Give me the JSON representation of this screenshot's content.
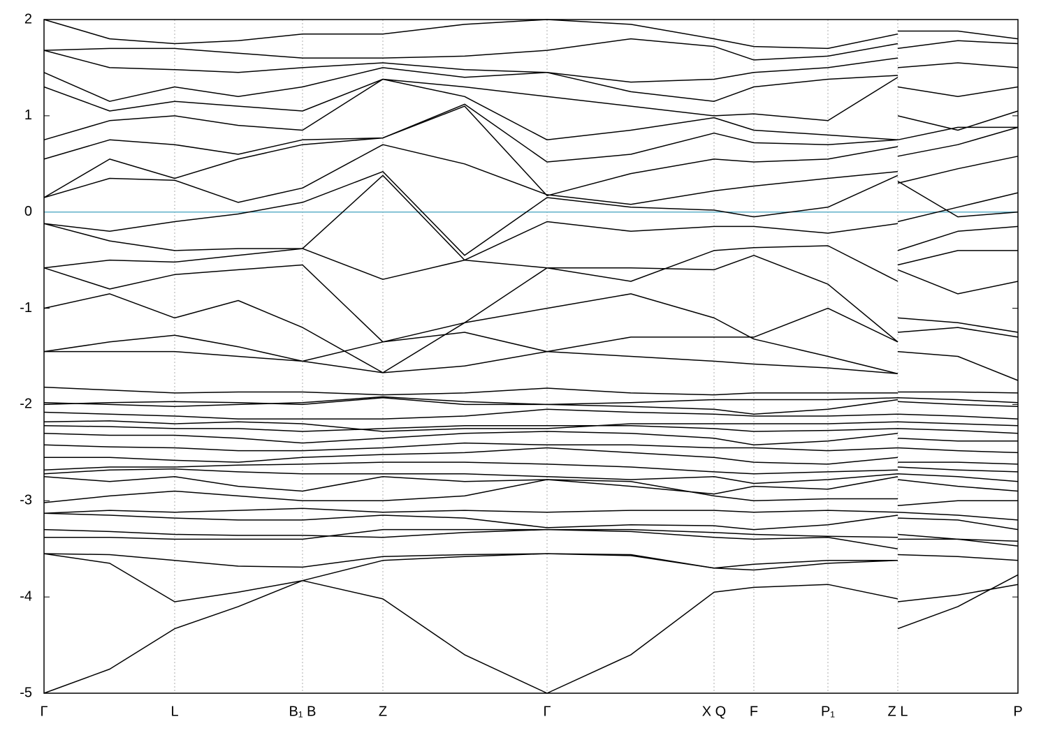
{
  "chart_data": {
    "type": "line",
    "color": "#000000",
    "xlim": [
      0,
      1394
    ],
    "ylim": [
      -5,
      2
    ],
    "xticks": [
      {
        "value": 0,
        "label": "Γ"
      },
      {
        "value": 187,
        "label": "L"
      },
      {
        "value": 370,
        "label": "B₁ B"
      },
      {
        "value": 485,
        "label": "Z"
      },
      {
        "value": 720,
        "label": "Γ"
      },
      {
        "value": 959,
        "label": "X Q"
      },
      {
        "value": 1016,
        "label": "F"
      },
      {
        "value": 1122,
        "label": "P₁"
      },
      {
        "value": 1222,
        "label": "Z L"
      },
      {
        "value": 1394,
        "label": "P"
      }
    ],
    "yticks": [
      -5,
      -4,
      -3,
      -2,
      -1,
      0,
      1,
      2
    ],
    "x_grid": true,
    "reference_line": {
      "value": 0,
      "color": "#5fb0c8"
    },
    "x": [
      0,
      94,
      187,
      278,
      370,
      485,
      602,
      720,
      840,
      959,
      1016,
      1122,
      1222,
      1222,
      1222,
      1308,
      1394
    ],
    "series": [
      {
        "values": [
          -5,
          -4.75,
          -4.33,
          -4.1,
          -3.83,
          -3.62,
          -3.58,
          -3.55,
          -3.57,
          -3.7,
          -3.66,
          -3.62,
          -3.62,
          null,
          -4.33,
          -4.1,
          -3.77
        ]
      },
      {
        "values": [
          -3.55,
          -3.65,
          -4.05,
          -3.95,
          -3.83,
          -4.02,
          -4.6,
          -5,
          -4.6,
          -3.95,
          -3.9,
          -3.87,
          -4.02,
          null,
          -4.05,
          -3.98,
          -3.87
        ]
      },
      {
        "values": [
          -3.55,
          -3.56,
          -3.62,
          -3.68,
          -3.69,
          -3.58,
          -3.56,
          -3.55,
          -3.56,
          -3.7,
          -3.72,
          -3.65,
          -3.62,
          null,
          -3.56,
          -3.58,
          -3.62
        ]
      },
      {
        "values": [
          -3.38,
          -3.38,
          -3.4,
          -3.4,
          -3.4,
          -3.3,
          -3.3,
          -3.3,
          -3.3,
          -3.33,
          -3.35,
          -3.37,
          -3.38,
          null,
          -3.4,
          -3.4,
          -3.42
        ]
      },
      {
        "values": [
          -3.3,
          -3.32,
          -3.35,
          -3.36,
          -3.36,
          -3.38,
          -3.33,
          -3.3,
          -3.32,
          -3.38,
          -3.4,
          -3.38,
          -3.5,
          null,
          -3.35,
          -3.4,
          -3.47
        ]
      },
      {
        "values": [
          -3.13,
          -3.15,
          -3.18,
          -3.2,
          -3.2,
          -3.15,
          -3.18,
          -3.28,
          -3.25,
          -3.26,
          -3.3,
          -3.25,
          -3.15,
          null,
          -3.18,
          -3.2,
          -3.3
        ]
      },
      {
        "values": [
          -3.13,
          -3.1,
          -3.12,
          -3.1,
          -3.08,
          -3.12,
          -3.1,
          -3.12,
          -3.1,
          -3.1,
          -3.12,
          -3.1,
          -3.12,
          null,
          -3.12,
          -3.15,
          -3.2
        ]
      },
      {
        "values": [
          -3.02,
          -2.95,
          -2.9,
          -2.95,
          -3,
          -3,
          -2.95,
          -2.78,
          -2.8,
          -2.95,
          -3,
          -2.98,
          -2.98,
          null,
          -3.05,
          -3,
          -3
        ]
      },
      {
        "values": [
          -2.75,
          -2.8,
          -2.75,
          -2.85,
          -2.9,
          -2.75,
          -2.8,
          -2.78,
          -2.85,
          -2.93,
          -2.85,
          -2.88,
          -2.75,
          null,
          -2.78,
          -2.85,
          -2.9
        ]
      },
      {
        "values": [
          -2.72,
          -2.68,
          -2.67,
          -2.7,
          -2.72,
          -2.72,
          -2.72,
          -2.75,
          -2.78,
          -2.75,
          -2.82,
          -2.78,
          -2.72,
          null,
          -2.72,
          -2.75,
          -2.8
        ]
      },
      {
        "values": [
          -2.68,
          -2.65,
          -2.65,
          -2.63,
          -2.62,
          -2.6,
          -2.6,
          -2.62,
          -2.65,
          -2.7,
          -2.72,
          -2.7,
          -2.68,
          null,
          -2.65,
          -2.68,
          -2.7
        ]
      },
      {
        "values": [
          -2.55,
          -2.55,
          -2.58,
          -2.6,
          -2.55,
          -2.52,
          -2.5,
          -2.45,
          -2.5,
          -2.55,
          -2.6,
          -2.62,
          -2.55,
          null,
          -2.6,
          -2.6,
          -2.62
        ]
      },
      {
        "values": [
          -2.42,
          -2.44,
          -2.45,
          -2.48,
          -2.48,
          -2.45,
          -2.4,
          -2.42,
          -2.42,
          -2.45,
          -2.45,
          -2.48,
          -2.45,
          null,
          -2.45,
          -2.48,
          -2.5
        ]
      },
      {
        "values": [
          -2.3,
          -2.32,
          -2.32,
          -2.35,
          -2.4,
          -2.35,
          -2.3,
          -2.28,
          -2.3,
          -2.35,
          -2.42,
          -2.38,
          -2.3,
          null,
          -2.35,
          -2.38,
          -2.38
        ]
      },
      {
        "values": [
          -2.22,
          -2.23,
          -2.25,
          -2.25,
          -2.28,
          -2.25,
          -2.22,
          -2.22,
          -2.22,
          -2.25,
          -2.28,
          -2.27,
          -2.25,
          null,
          -2.25,
          -2.27,
          -2.3
        ]
      },
      {
        "values": [
          -2.18,
          -2.17,
          -2.2,
          -2.18,
          -2.2,
          -2.28,
          -2.25,
          -2.25,
          -2.2,
          -2.2,
          -2.2,
          -2.2,
          -2.18,
          null,
          -2.18,
          -2.2,
          -2.22
        ]
      },
      {
        "values": [
          -2.08,
          -2.1,
          -2.12,
          -2.15,
          -2.15,
          -2.15,
          -2.12,
          -2.05,
          -2.08,
          -2.1,
          -2.12,
          -2.12,
          -2.1,
          null,
          -2.1,
          -2.12,
          -2.15
        ]
      },
      {
        "values": [
          -2,
          -1.98,
          -1.97,
          -1.98,
          -2,
          -1.93,
          -2,
          -2,
          -2.02,
          -2.05,
          -2.1,
          -2.05,
          -1.95,
          null,
          -1.97,
          -2,
          -2.02
        ]
      },
      {
        "values": [
          -1.98,
          -2,
          -2.02,
          -2,
          -1.98,
          -1.92,
          -1.97,
          -2,
          -1.98,
          -1.95,
          -1.95,
          -1.95,
          -1.93,
          null,
          -1.93,
          -1.95,
          -1.98
        ]
      },
      {
        "values": [
          -1.82,
          -1.85,
          -1.88,
          -1.87,
          -1.87,
          -1.9,
          -1.88,
          -1.83,
          -1.88,
          -1.9,
          -1.88,
          -1.88,
          -1.88,
          null,
          -1.87,
          -1.87,
          -1.88
        ]
      },
      {
        "values": [
          -1.45,
          -1.45,
          -1.45,
          -1.5,
          -1.55,
          -1.67,
          -1.6,
          -1.45,
          -1.5,
          -1.55,
          -1.58,
          -1.62,
          -1.68,
          null,
          -1.45,
          -1.5,
          -1.75
        ]
      },
      {
        "values": [
          -1.45,
          -1.35,
          -1.28,
          -1.4,
          -1.55,
          -1.35,
          -1.25,
          -1.45,
          -1.3,
          -1.3,
          -1.3,
          -1,
          -1.35,
          null,
          -1.25,
          -1.2,
          -1.3
        ]
      },
      {
        "values": [
          -1,
          -0.85,
          -1.1,
          -0.92,
          -1.2,
          -1.67,
          -1.15,
          -1,
          -0.85,
          -1.1,
          -1.32,
          -1.5,
          -1.68,
          null,
          -1.1,
          -1.15,
          -1.25
        ]
      },
      {
        "values": [
          -0.58,
          -0.8,
          -0.65,
          -0.6,
          -0.55,
          -1.35,
          -1.15,
          -0.58,
          -0.58,
          -0.6,
          -0.45,
          -0.75,
          -1.35,
          null,
          -0.6,
          -0.85,
          -0.72
        ]
      },
      {
        "values": [
          -0.58,
          -0.5,
          -0.52,
          -0.45,
          -0.38,
          -0.7,
          -0.5,
          -0.58,
          -0.72,
          -0.4,
          -0.37,
          -0.35,
          -0.72,
          null,
          -0.55,
          -0.4,
          -0.4
        ]
      },
      {
        "values": [
          -0.12,
          -0.3,
          -0.4,
          -0.38,
          -0.38,
          0.38,
          -0.5,
          -0.1,
          -0.2,
          -0.15,
          -0.15,
          -0.22,
          -0.12,
          null,
          -0.4,
          -0.2,
          -0.15
        ]
      },
      {
        "values": [
          -0.12,
          -0.2,
          -0.1,
          -0.02,
          0.1,
          0.42,
          -0.45,
          0.15,
          0.05,
          0.02,
          -0.05,
          0.05,
          0.38,
          null,
          -0.1,
          0.05,
          0.2
        ]
      },
      {
        "values": [
          0.15,
          0.35,
          0.33,
          0.1,
          0.25,
          0.7,
          0.5,
          0.18,
          0.08,
          0.22,
          0.27,
          0.35,
          0.42,
          null,
          0.32,
          -0.05,
          0
        ]
      },
      {
        "values": [
          0.15,
          0.55,
          0.35,
          0.55,
          0.7,
          0.77,
          1.1,
          0.17,
          0.4,
          0.55,
          0.52,
          0.55,
          0.68,
          null,
          0.3,
          0.45,
          0.58
        ]
      },
      {
        "values": [
          0.55,
          0.75,
          0.7,
          0.6,
          0.75,
          0.77,
          1.12,
          0.52,
          0.6,
          0.82,
          0.72,
          0.7,
          0.75,
          null,
          0.58,
          0.7,
          0.88
        ]
      },
      {
        "values": [
          0.75,
          0.95,
          1,
          0.9,
          0.85,
          1.38,
          1.2,
          0.75,
          0.85,
          0.98,
          0.85,
          0.8,
          0.75,
          null,
          0.75,
          0.88,
          0.88
        ]
      },
      {
        "values": [
          1.3,
          1.05,
          1.15,
          1.1,
          1.05,
          1.38,
          1.3,
          1.2,
          1.1,
          1,
          1.02,
          0.95,
          1.4,
          null,
          1,
          0.85,
          1.05
        ]
      },
      {
        "values": [
          1.45,
          1.15,
          1.3,
          1.2,
          1.3,
          1.5,
          1.4,
          1.45,
          1.25,
          1.15,
          1.3,
          1.38,
          1.42,
          null,
          1.3,
          1.2,
          1.3
        ]
      },
      {
        "values": [
          1.68,
          1.5,
          1.48,
          1.45,
          1.5,
          1.55,
          1.48,
          1.45,
          1.35,
          1.38,
          1.45,
          1.5,
          1.6,
          null,
          1.5,
          1.55,
          1.5
        ]
      },
      {
        "values": [
          1.68,
          1.7,
          1.7,
          1.65,
          1.6,
          1.6,
          1.62,
          1.68,
          1.8,
          1.72,
          1.58,
          1.62,
          1.75,
          null,
          1.7,
          1.78,
          1.75
        ]
      },
      {
        "values": [
          2,
          1.8,
          1.75,
          1.78,
          1.85,
          1.85,
          1.95,
          2,
          1.95,
          1.8,
          1.72,
          1.7,
          1.85,
          null,
          1.88,
          1.88,
          1.8
        ]
      }
    ]
  }
}
